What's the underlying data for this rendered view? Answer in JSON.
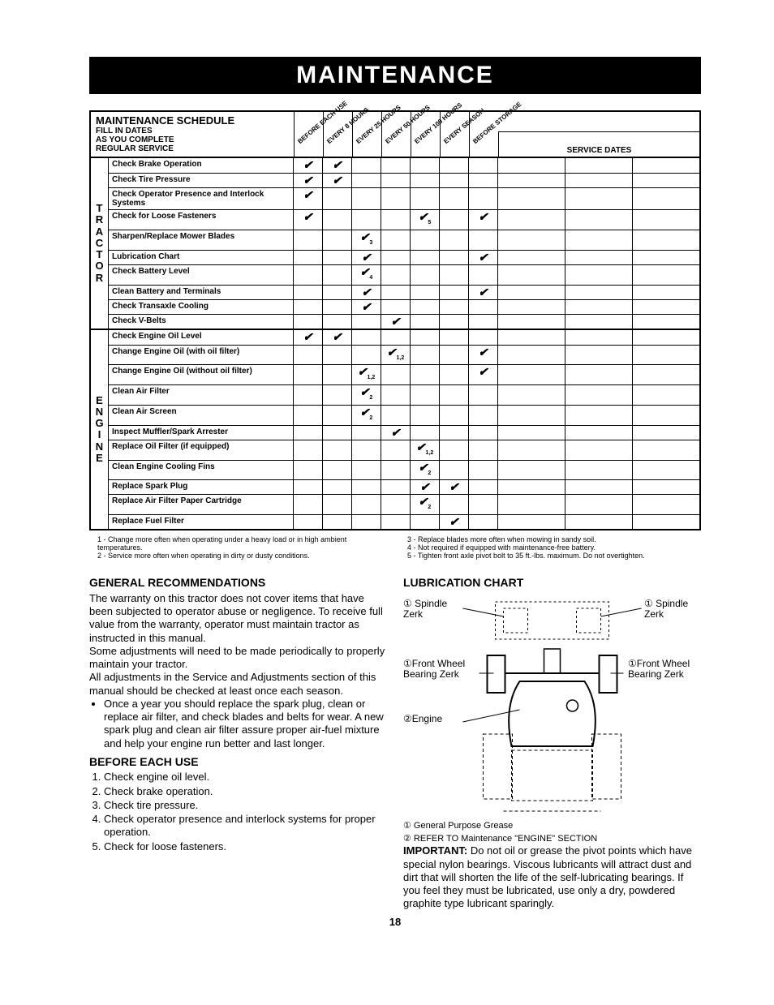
{
  "banner": "MAINTENANCE",
  "schedule": {
    "title": "MAINTENANCE SCHEDULE",
    "sub1": "FILL IN DATES",
    "sub2": "AS YOU COMPLETE",
    "sub3": "REGULAR SERVICE",
    "cols": [
      "BEFORE EACH USE",
      "EVERY 8 HOURS",
      "EVERY 25 HOURS",
      "EVERY 50 HOURS",
      "EVERY 100 HOURS",
      "EVERY SEASON",
      "BEFORE STORAGE"
    ],
    "service_label": "SERVICE DATES",
    "groups": [
      {
        "side": "TRACTOR",
        "rows": [
          {
            "task": "Check Brake Operation",
            "c": [
              1,
              1,
              0,
              0,
              0,
              0,
              0
            ],
            "sub": [
              "",
              "",
              "",
              "",
              "",
              "",
              ""
            ]
          },
          {
            "task": "Check Tire Pressure",
            "c": [
              1,
              1,
              0,
              0,
              0,
              0,
              0
            ],
            "sub": [
              "",
              "",
              "",
              "",
              "",
              "",
              ""
            ]
          },
          {
            "task": "Check Operator Presence and Interlock Systems",
            "c": [
              1,
              0,
              0,
              0,
              0,
              0,
              0
            ],
            "sub": [
              "",
              "",
              "",
              "",
              "",
              "",
              ""
            ]
          },
          {
            "task": "Check for Loose Fasteners",
            "c": [
              1,
              0,
              0,
              0,
              1,
              0,
              1
            ],
            "sub": [
              "",
              "",
              "",
              "",
              "5",
              "",
              ""
            ]
          },
          {
            "task": "Sharpen/Replace Mower Blades",
            "c": [
              0,
              0,
              1,
              0,
              0,
              0,
              0
            ],
            "sub": [
              "",
              "",
              "3",
              "",
              "",
              "",
              ""
            ]
          },
          {
            "task": "Lubrication Chart",
            "c": [
              0,
              0,
              1,
              0,
              0,
              0,
              1
            ],
            "sub": [
              "",
              "",
              "",
              "",
              "",
              "",
              ""
            ]
          },
          {
            "task": "Check Battery Level",
            "c": [
              0,
              0,
              1,
              0,
              0,
              0,
              0
            ],
            "sub": [
              "",
              "",
              "4",
              "",
              "",
              "",
              ""
            ]
          },
          {
            "task": "Clean Battery and Terminals",
            "c": [
              0,
              0,
              1,
              0,
              0,
              0,
              1
            ],
            "sub": [
              "",
              "",
              "",
              "",
              "",
              "",
              ""
            ]
          },
          {
            "task": "Check Transaxle Cooling",
            "c": [
              0,
              0,
              1,
              0,
              0,
              0,
              0
            ],
            "sub": [
              "",
              "",
              "",
              "",
              "",
              "",
              ""
            ]
          },
          {
            "task": "Check V-Belts",
            "c": [
              0,
              0,
              0,
              1,
              0,
              0,
              0
            ],
            "sub": [
              "",
              "",
              "",
              "",
              "",
              "",
              ""
            ]
          }
        ]
      },
      {
        "side": "ENGINE",
        "rows": [
          {
            "task": "Check Engine Oil Level",
            "c": [
              1,
              1,
              0,
              0,
              0,
              0,
              0
            ],
            "sub": [
              "",
              "",
              "",
              "",
              "",
              "",
              ""
            ]
          },
          {
            "task": "Change Engine Oil (with oil filter)",
            "c": [
              0,
              0,
              0,
              1,
              0,
              0,
              1
            ],
            "sub": [
              "",
              "",
              "",
              "1,2",
              "",
              "",
              ""
            ]
          },
          {
            "task": "Change Engine Oil (without oil filter)",
            "c": [
              0,
              0,
              1,
              0,
              0,
              0,
              1
            ],
            "sub": [
              "",
              "",
              "1,2",
              "",
              "",
              "",
              ""
            ]
          },
          {
            "task": "Clean Air Filter",
            "c": [
              0,
              0,
              1,
              0,
              0,
              0,
              0
            ],
            "sub": [
              "",
              "",
              "2",
              "",
              "",
              "",
              ""
            ]
          },
          {
            "task": "Clean Air Screen",
            "c": [
              0,
              0,
              1,
              0,
              0,
              0,
              0
            ],
            "sub": [
              "",
              "",
              "2",
              "",
              "",
              "",
              ""
            ]
          },
          {
            "task": "Inspect Muffler/Spark Arrester",
            "c": [
              0,
              0,
              0,
              1,
              0,
              0,
              0
            ],
            "sub": [
              "",
              "",
              "",
              "",
              "",
              "",
              ""
            ]
          },
          {
            "task": "Replace Oil Filter (if equipped)",
            "c": [
              0,
              0,
              0,
              0,
              1,
              0,
              0
            ],
            "sub": [
              "",
              "",
              "",
              "",
              "1,2",
              "",
              ""
            ]
          },
          {
            "task": "Clean Engine Cooling Fins",
            "c": [
              0,
              0,
              0,
              0,
              1,
              0,
              0
            ],
            "sub": [
              "",
              "",
              "",
              "",
              "2",
              "",
              ""
            ]
          },
          {
            "task": "Replace Spark Plug",
            "c": [
              0,
              0,
              0,
              0,
              1,
              1,
              0
            ],
            "sub": [
              "",
              "",
              "",
              "",
              "",
              "",
              ""
            ]
          },
          {
            "task": "Replace Air Filter Paper Cartridge",
            "c": [
              0,
              0,
              0,
              0,
              1,
              0,
              0
            ],
            "sub": [
              "",
              "",
              "",
              "",
              "2",
              "",
              ""
            ]
          },
          {
            "task": "Replace Fuel Filter",
            "c": [
              0,
              0,
              0,
              0,
              0,
              1,
              0
            ],
            "sub": [
              "",
              "",
              "",
              "",
              "",
              "",
              ""
            ]
          }
        ]
      }
    ]
  },
  "footnotes": {
    "left": "1 - Change more often when operating under a heavy load or in high ambient temperatures.\n2 - Service more often when operating in dirty or dusty conditions.",
    "right": "3 - Replace blades more often when mowing in sandy soil.\n4 - Not required if equipped with maintenance-free battery.\n5 - Tighten front axle pivot bolt to 35 ft.-lbs. maximum. Do not overtighten."
  },
  "left_col": {
    "h1": "GENERAL RECOMMENDATIONS",
    "p1": "The warranty on this tractor does not cover items that have been subjected to operator abuse or negligence. To receive full value from the warranty, operator must maintain tractor as instructed in this manual.",
    "p2": "Some adjustments will need to be made periodically to properly maintain your tractor.",
    "p3": "All adjustments in the Service and Adjustments section of this manual should be checked at least once each season.",
    "bullet": "Once a year you should replace the spark plug, clean or replace air filter, and check blades and belts for wear. A new spark plug and clean air filter assure proper air-fuel mixture and help your engine run better and last longer.",
    "h2": "BEFORE EACH USE",
    "list": [
      "Check engine oil level.",
      "Check brake operation.",
      "Check tire pressure.",
      "Check operator presence and interlock systems for proper operation.",
      "Check for loose fasteners."
    ]
  },
  "right_col": {
    "h1": "LUBRICATION CHART",
    "labels": {
      "spindleL": "① Spindle Zerk",
      "spindleR": "① Spindle Zerk",
      "fwL": "①Front Wheel Bearing Zerk",
      "fwR": "①Front Wheel Bearing Zerk",
      "engine": "②Engine"
    },
    "legend1": "① General Purpose Grease",
    "legend2": "② REFER TO Maintenance \"ENGINE\" SECTION",
    "important": "IMPORTANT: Do not oil or grease the pivot points which have special nylon bearings. Viscous lubricants will attract dust and dirt that will shorten the life of the self-lubricating bearings. If you feel they must be lubricated, use only a dry, powdered graphite type lubricant sparingly."
  },
  "page": "18"
}
